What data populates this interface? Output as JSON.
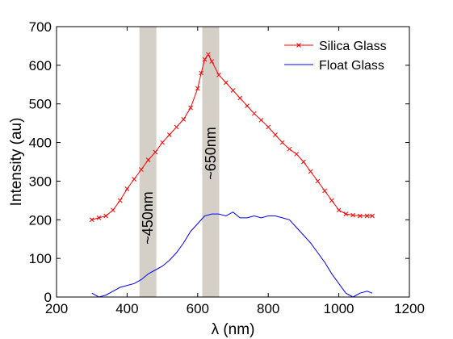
{
  "chart_data": {
    "type": "line",
    "title": "",
    "xlabel": "λ (nm)",
    "ylabel": "Intensity (au)",
    "xlim": [
      200,
      1200
    ],
    "ylim": [
      0,
      700
    ],
    "xticks": [
      200,
      400,
      600,
      800,
      1000,
      1200
    ],
    "yticks": [
      0,
      100,
      200,
      300,
      400,
      500,
      600,
      700
    ],
    "grid": false,
    "legend": "top-right",
    "bands": [
      {
        "label": "~450nm",
        "x_range": [
          435,
          483
        ],
        "color": "#d4d0c8"
      },
      {
        "label": "~650nm",
        "x_range": [
          613,
          661
        ],
        "color": "#d4d0c8"
      }
    ],
    "series": [
      {
        "name": "Silica Glass",
        "color": "#ff0000",
        "marker": "x",
        "x": [
          300,
          320,
          340,
          360,
          380,
          400,
          420,
          440,
          460,
          480,
          500,
          520,
          540,
          560,
          580,
          600,
          610,
          620,
          630,
          640,
          660,
          680,
          700,
          720,
          740,
          760,
          780,
          800,
          820,
          840,
          860,
          880,
          900,
          920,
          940,
          960,
          980,
          1000,
          1020,
          1040,
          1060,
          1080,
          1095
        ],
        "y": [
          200,
          205,
          210,
          225,
          250,
          280,
          305,
          330,
          355,
          375,
          400,
          420,
          440,
          460,
          490,
          540,
          580,
          615,
          628,
          610,
          575,
          555,
          535,
          515,
          495,
          475,
          458,
          440,
          420,
          400,
          383,
          370,
          350,
          325,
          300,
          275,
          250,
          225,
          215,
          212,
          210,
          210,
          210
        ]
      },
      {
        "name": "Float Glass",
        "color": "#0000ff",
        "marker": "none",
        "x": [
          300,
          320,
          340,
          360,
          380,
          400,
          420,
          440,
          460,
          480,
          500,
          520,
          540,
          560,
          580,
          600,
          620,
          640,
          660,
          680,
          700,
          720,
          740,
          760,
          780,
          800,
          820,
          840,
          860,
          880,
          900,
          920,
          940,
          960,
          980,
          1000,
          1020,
          1040,
          1060,
          1080,
          1095
        ],
        "y": [
          10,
          0,
          5,
          15,
          25,
          30,
          35,
          45,
          60,
          70,
          80,
          95,
          115,
          140,
          170,
          190,
          210,
          215,
          215,
          210,
          220,
          205,
          205,
          210,
          205,
          210,
          210,
          205,
          200,
          180,
          160,
          140,
          115,
          90,
          60,
          35,
          10,
          0,
          10,
          15,
          10
        ]
      }
    ]
  }
}
